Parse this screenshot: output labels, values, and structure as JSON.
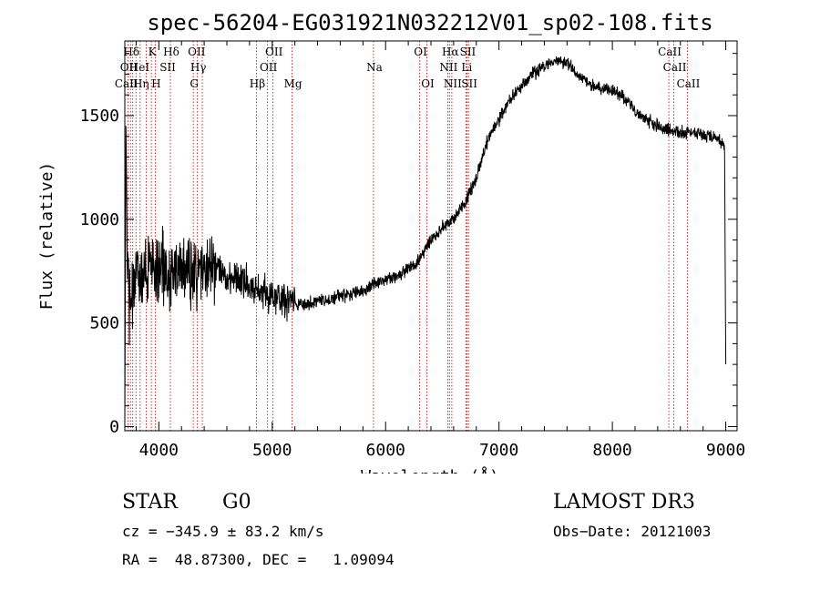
{
  "chart_data": {
    "type": "line",
    "title": "spec-56204-EG031921N032212V01_sp02-108.fits",
    "xlabel": "Wavelength (Å)",
    "ylabel": "Flux (relative)",
    "xlim": [
      3700,
      9100
    ],
    "ylim": [
      -20,
      1860
    ],
    "x_ticks": [
      4000,
      5000,
      6000,
      7000,
      8000,
      9000
    ],
    "y_ticks": [
      0,
      500,
      1000,
      1500
    ],
    "x_tick_labels": [
      "4000",
      "5000",
      "6000",
      "7000",
      "8000",
      "9000"
    ],
    "y_tick_labels": [
      "0",
      "500",
      "1000",
      "1500"
    ],
    "series": [
      {
        "name": "flux",
        "x": [
          3700,
          3710,
          3720,
          3740,
          3760,
          3780,
          3800,
          3850,
          3900,
          3950,
          4000,
          4050,
          4100,
          4200,
          4300,
          4400,
          4500,
          4600,
          4700,
          4800,
          4900,
          5000,
          5100,
          5200,
          5300,
          5400,
          5500,
          5600,
          5700,
          5800,
          5900,
          6000,
          6100,
          6200,
          6300,
          6400,
          6500,
          6600,
          6700,
          6800,
          6900,
          7000,
          7100,
          7200,
          7300,
          7400,
          7500,
          7600,
          7650,
          7700,
          7800,
          7900,
          8000,
          8100,
          8200,
          8300,
          8400,
          8500,
          8600,
          8700,
          8800,
          8900,
          8950,
          8990,
          9000
        ],
        "y": [
          0,
          1450,
          900,
          600,
          620,
          700,
          720,
          740,
          740,
          760,
          760,
          760,
          740,
          740,
          740,
          760,
          760,
          730,
          720,
          690,
          650,
          630,
          610,
          590,
          590,
          600,
          610,
          630,
          640,
          650,
          690,
          710,
          720,
          760,
          800,
          900,
          960,
          1000,
          1080,
          1200,
          1380,
          1480,
          1580,
          1640,
          1700,
          1740,
          1760,
          1760,
          1730,
          1690,
          1650,
          1630,
          1620,
          1590,
          1520,
          1480,
          1450,
          1430,
          1420,
          1420,
          1410,
          1400,
          1380,
          1350,
          300
        ],
        "noise_regions": [
          {
            "from": 3720,
            "to": 4500,
            "amplitude": 220
          },
          {
            "from": 4500,
            "to": 5200,
            "amplitude": 110
          },
          {
            "from": 5200,
            "to": 9000,
            "amplitude": 40
          }
        ]
      }
    ],
    "line_markers": [
      {
        "label": "Hδ",
        "x": 3750,
        "row": 1
      },
      {
        "label": "K",
        "x": 3934,
        "row": 1
      },
      {
        "label": "Hδ",
        "x": 4102,
        "row": 1
      },
      {
        "label": "OII",
        "x": 4325,
        "row": 1
      },
      {
        "label": "OII",
        "x": 5007,
        "row": 1
      },
      {
        "label": "OI",
        "x": 6300,
        "row": 1
      },
      {
        "label": "Hα",
        "x": 6563,
        "row": 1
      },
      {
        "label": "SII",
        "x": 6717,
        "row": 1
      },
      {
        "label": "CaII",
        "x": 8498,
        "row": 1
      },
      {
        "label": "OII",
        "x": 3727,
        "row": 2
      },
      {
        "label": "HeI",
        "x": 3820,
        "row": 2
      },
      {
        "label": "SII",
        "x": 4070,
        "row": 2
      },
      {
        "label": "Hγ",
        "x": 4340,
        "row": 2
      },
      {
        "label": "OII",
        "x": 4959,
        "row": 2
      },
      {
        "label": "Na",
        "x": 5893,
        "row": 2
      },
      {
        "label": "NII",
        "x": 6548,
        "row": 2
      },
      {
        "label": "Li",
        "x": 6708,
        "row": 2
      },
      {
        "label": "CaII",
        "x": 8542,
        "row": 2
      },
      {
        "label": "CaII",
        "x": 3706,
        "row": 3
      },
      {
        "label": "Hη",
        "x": 3835,
        "row": 3
      },
      {
        "label": "H",
        "x": 3968,
        "row": 3
      },
      {
        "label": "G",
        "x": 4304,
        "row": 3
      },
      {
        "label": "Hβ",
        "x": 4861,
        "row": 3
      },
      {
        "label": "Mg",
        "x": 5175,
        "row": 3
      },
      {
        "label": "OI",
        "x": 6364,
        "row": 3
      },
      {
        "label": "NII",
        "x": 6584,
        "row": 3
      },
      {
        "label": "SII",
        "x": 6731,
        "row": 3
      },
      {
        "label": "CaII",
        "x": 8662,
        "row": 3
      }
    ],
    "marker_lines_x": [
      3727,
      3750,
      3770,
      3798,
      3835,
      3889,
      3934,
      3970,
      4102,
      4304,
      4340,
      4383,
      4861,
      4959,
      5007,
      5175,
      5893,
      6300,
      6364,
      6548,
      6563,
      6584,
      6708,
      6717,
      6731,
      8498,
      8542,
      8662
    ]
  },
  "info": {
    "object_type": "STAR",
    "subclass": "G0",
    "survey": "LAMOST DR3",
    "cz": "cz = −345.9 ± 83.2 km/s",
    "obs_date": "Obs−Date: 20121003",
    "coords": "RA =  48.87300, DEC =   1.09094"
  },
  "colors": {
    "axis": "#000000",
    "spectrum": "#000000",
    "marker_line": "#c00000"
  }
}
